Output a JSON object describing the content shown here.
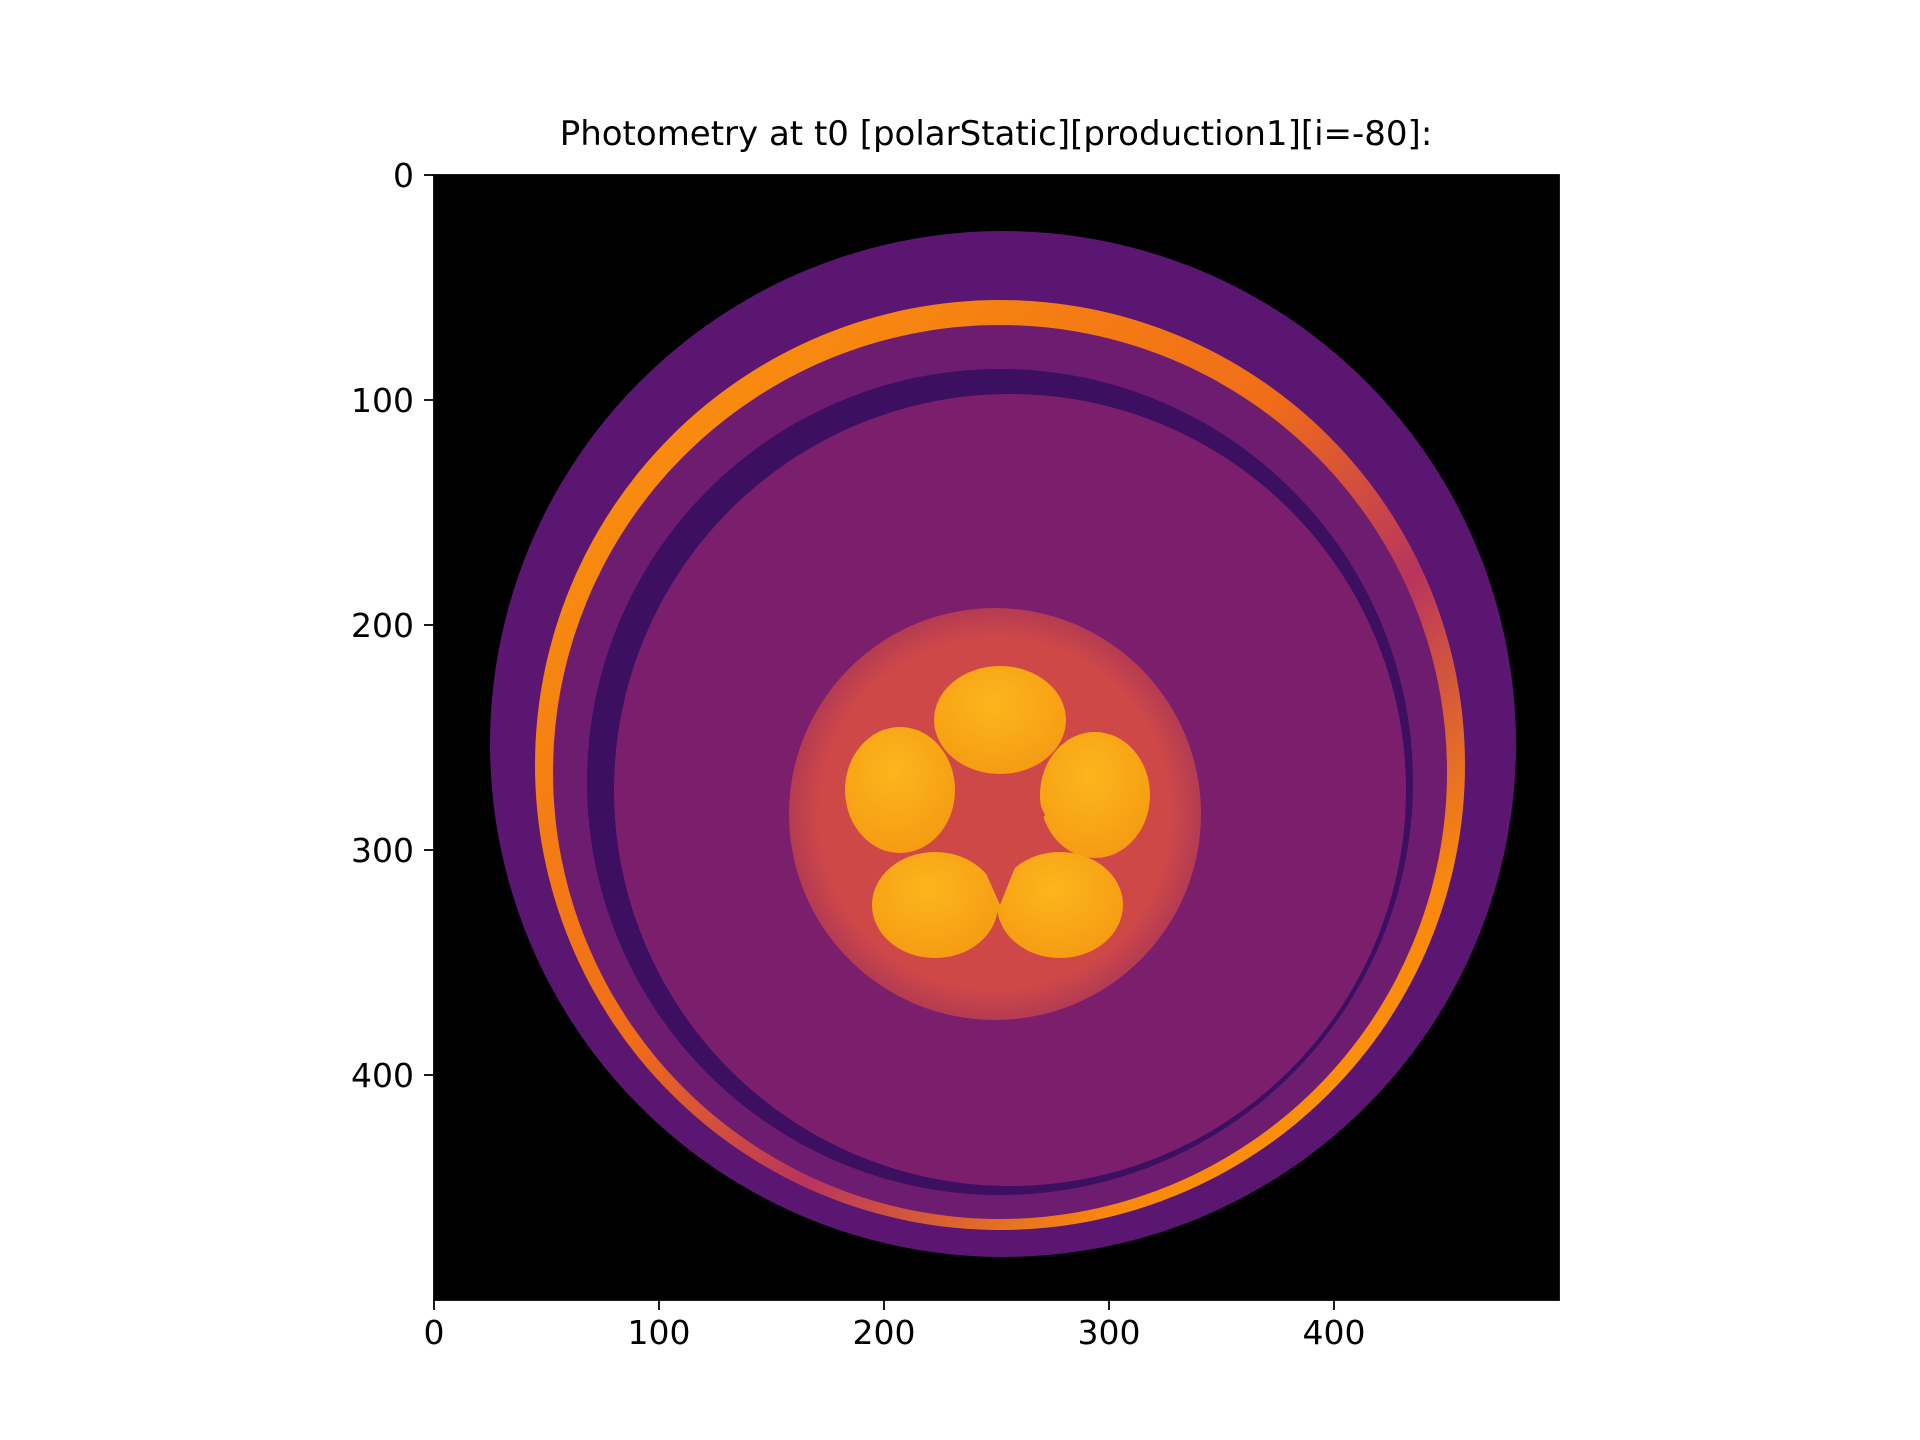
{
  "figure": {
    "title": "Photometry at t0 [polarStatic][production1][i=-80]:"
  },
  "axes": {
    "x_ticks": [
      {
        "value": 0,
        "label": "0"
      },
      {
        "value": 100,
        "label": "100"
      },
      {
        "value": 200,
        "label": "200"
      },
      {
        "value": 300,
        "label": "300"
      },
      {
        "value": 400,
        "label": "400"
      }
    ],
    "y_ticks": [
      {
        "value": 0,
        "label": "0"
      },
      {
        "value": 100,
        "label": "100"
      },
      {
        "value": 200,
        "label": "200"
      },
      {
        "value": 300,
        "label": "300"
      },
      {
        "value": 400,
        "label": "400"
      }
    ],
    "xlim": [
      0,
      500
    ],
    "ylim": [
      500,
      0
    ],
    "colormap": "inferno"
  },
  "colors": {
    "background": "#000000",
    "outer_limb": "#5a1670",
    "bright_ring": "#f9890c",
    "disk_body": "#7b1f6c",
    "dark_band": "#3a0e5e",
    "inner_disk": "#cf4a46",
    "spots": "#f9b01a"
  }
}
